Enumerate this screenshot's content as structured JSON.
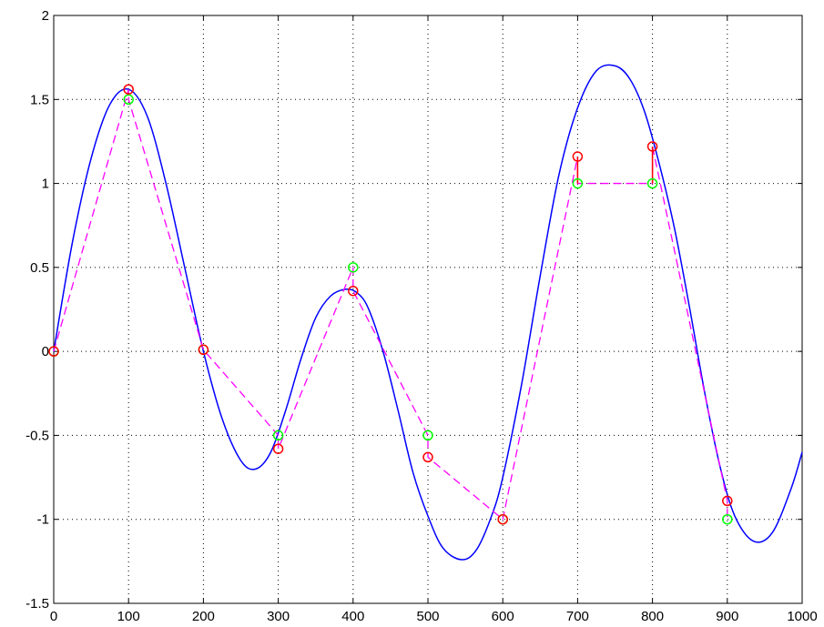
{
  "chart_data": {
    "type": "line",
    "xlim": [
      0,
      1000
    ],
    "ylim": [
      -1.5,
      2
    ],
    "grid": true,
    "legend": "none",
    "x_ticks": [
      0,
      100,
      200,
      300,
      400,
      500,
      600,
      700,
      800,
      900,
      1000
    ],
    "x_tick_labels": [
      "0",
      "100",
      "200",
      "300",
      "400",
      "500",
      "600",
      "700",
      "800",
      "900",
      "1000"
    ],
    "y_ticks": [
      -1.5,
      -1,
      -0.5,
      0,
      0.5,
      1,
      1.5,
      2
    ],
    "y_tick_labels": [
      "-1.5",
      "-1",
      "-0.5",
      "0",
      "0.5",
      "1",
      "1.5",
      "2"
    ],
    "colors": {
      "curve": "#0000ff",
      "dashed_line": "#ff00ff",
      "red_markers": "#ff0000",
      "green_markers": "#00ff00"
    },
    "series": [
      {
        "style": "solid-line",
        "color": "#0000ff",
        "x": [
          0,
          25,
          50,
          75,
          100,
          125,
          150,
          175,
          200,
          225,
          250,
          270,
          290,
          310,
          330,
          350,
          370,
          390,
          405,
          420,
          440,
          460,
          480,
          500,
          520,
          545,
          565,
          585,
          600,
          625,
          650,
          675,
          700,
          725,
          750,
          770,
          790,
          810,
          830,
          850,
          870,
          890,
          910,
          935,
          960,
          985,
          1000
        ],
        "y": [
          0,
          0.65,
          1.15,
          1.47,
          1.56,
          1.4,
          1.0,
          0.5,
          0.0,
          -0.4,
          -0.65,
          -0.7,
          -0.6,
          -0.35,
          -0.05,
          0.2,
          0.33,
          0.37,
          0.35,
          0.26,
          0.0,
          -0.35,
          -0.72,
          -0.98,
          -1.17,
          -1.24,
          -1.18,
          -0.98,
          -0.75,
          -0.2,
          0.45,
          1.05,
          1.45,
          1.67,
          1.7,
          1.62,
          1.42,
          1.1,
          0.72,
          0.25,
          -0.25,
          -0.68,
          -0.98,
          -1.13,
          -1.08,
          -0.82,
          -0.6
        ]
      },
      {
        "style": "dashed-line",
        "color": "#ff00ff",
        "x": [
          0,
          100,
          100,
          200,
          300,
          300,
          400,
          400,
          500,
          500,
          600,
          700,
          700,
          800,
          800,
          900,
          900
        ],
        "y": [
          0,
          1.56,
          1.5,
          0.01,
          -0.5,
          -0.58,
          0.5,
          0.36,
          -0.5,
          -0.63,
          -1.0,
          1.16,
          1.0,
          1.0,
          1.22,
          -0.89,
          -1.0
        ]
      },
      {
        "style": "circle-markers",
        "color": "#ff0000",
        "x": [
          0,
          100,
          200,
          300,
          400,
          500,
          600,
          700,
          800,
          900
        ],
        "y": [
          0,
          1.56,
          0.01,
          -0.58,
          0.36,
          -0.63,
          -1.0,
          1.16,
          1.22,
          -0.89
        ]
      },
      {
        "style": "circle-markers",
        "color": "#00ff00",
        "x": [
          0,
          100,
          200,
          300,
          400,
          500,
          600,
          700,
          800,
          900
        ],
        "y": [
          0,
          1.5,
          0.01,
          -0.5,
          0.5,
          -0.5,
          -1.0,
          1.0,
          1.0,
          -1.0
        ]
      }
    ]
  }
}
